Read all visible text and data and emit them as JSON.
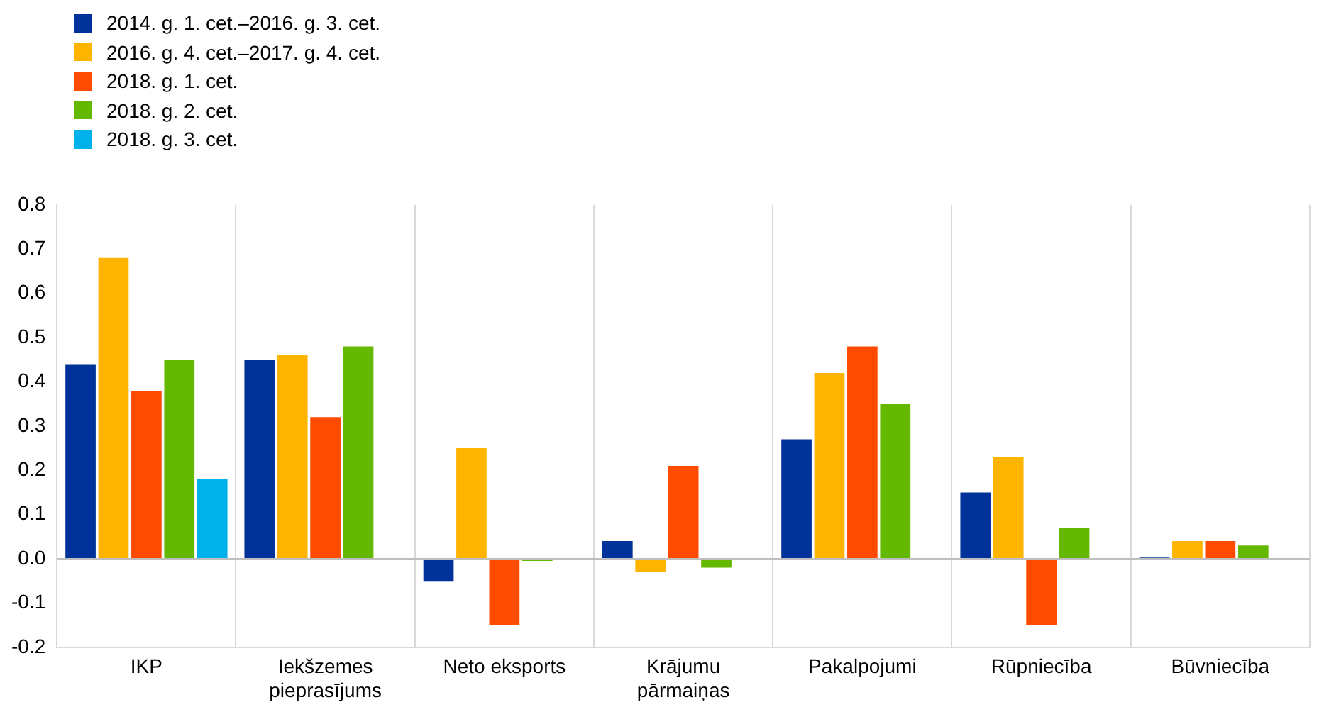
{
  "chart_data": {
    "type": "bar",
    "categories": [
      "IKP",
      "Iekšzemes pieprasījums",
      "Neto eksports",
      "Krājumu pārmaiņas",
      "Pakalpojumi",
      "Rūpniecība",
      "Būvniecība"
    ],
    "series": [
      {
        "name": "2014. g. 1. cet.–2016. g. 3. cet.",
        "color": "#003299",
        "values": [
          0.44,
          0.45,
          -0.05,
          0.04,
          0.27,
          0.15,
          0.003
        ]
      },
      {
        "name": "2016. g. 4. cet.–2017. g. 4. cet.",
        "color": "#ffb400",
        "values": [
          0.68,
          0.46,
          0.25,
          -0.03,
          0.42,
          0.23,
          0.04
        ]
      },
      {
        "name": "2018. g. 1. cet.",
        "color": "#ff4b00",
        "values": [
          0.38,
          0.32,
          -0.15,
          0.21,
          0.48,
          -0.15,
          0.04
        ]
      },
      {
        "name": "2018. g. 2. cet.",
        "color": "#65b800",
        "values": [
          0.45,
          0.48,
          -0.005,
          -0.02,
          0.35,
          0.07,
          0.03
        ]
      },
      {
        "name": "2018. g. 3. cet.",
        "color": "#00b1ea",
        "values": [
          0.18,
          null,
          null,
          null,
          null,
          null,
          null
        ]
      }
    ],
    "ylim": [
      -0.2,
      0.8
    ],
    "yticks": [
      -0.2,
      -0.1,
      {
        "value": 0,
        "label": "0.0"
      },
      0.1,
      0.2,
      0.3,
      0.4,
      0.5,
      0.6,
      0.7,
      0.8
    ],
    "grid": "x",
    "legend": "top left"
  }
}
